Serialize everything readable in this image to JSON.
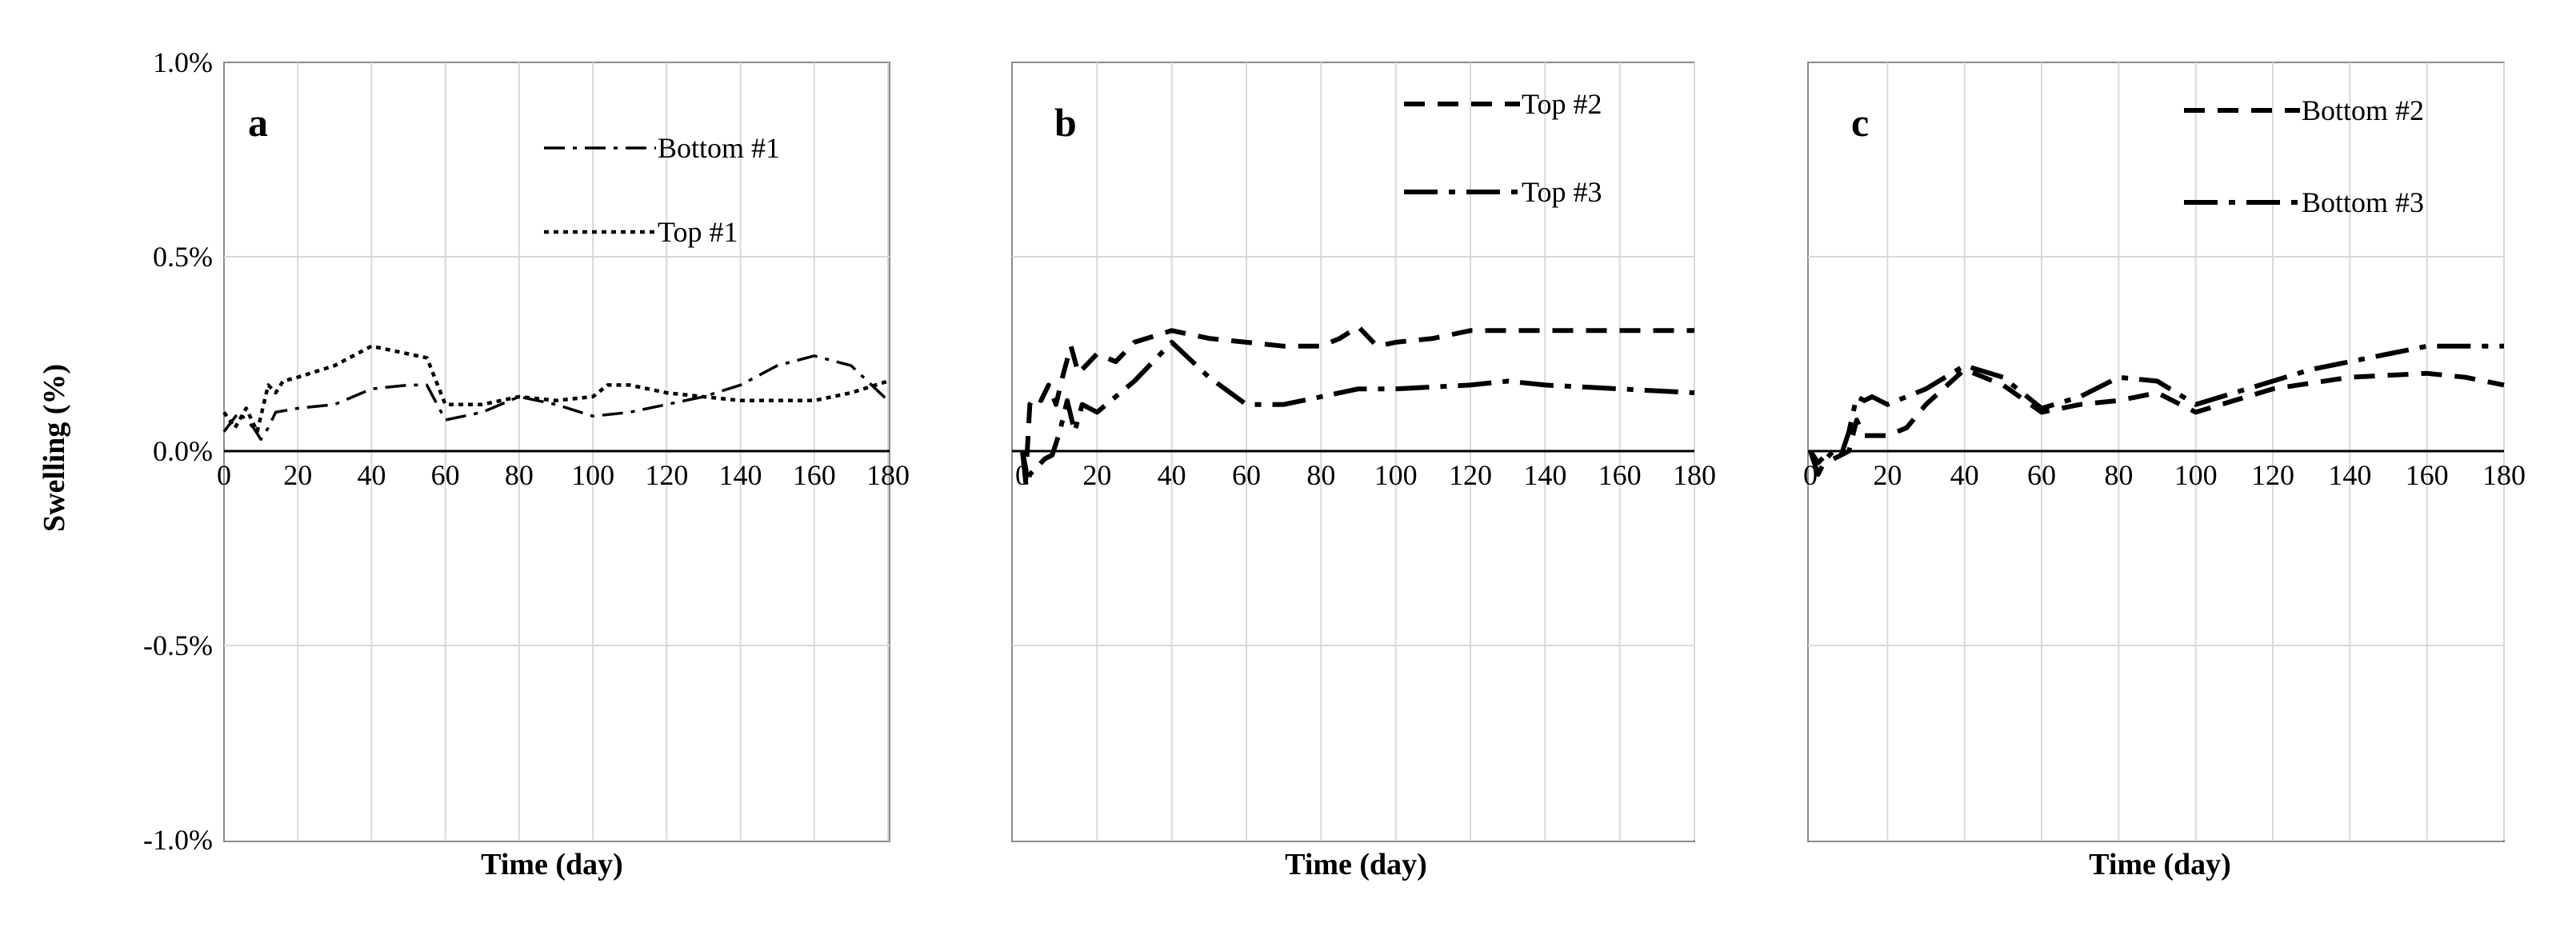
{
  "figure": {
    "shared_ylabel": "Swelling (%)",
    "colors": {
      "line": "#000000",
      "grid": "#d9d9d9",
      "frame": "#8c8c8c"
    }
  },
  "chart_data": [
    {
      "type": "line",
      "panel": "a",
      "xlabel": "Time (day)",
      "ylabel": "Swelling (%)",
      "xlim": [
        0,
        180
      ],
      "ylim": [
        -1.0,
        1.0
      ],
      "xticks": [
        0,
        20,
        40,
        60,
        80,
        100,
        120,
        140,
        160,
        180
      ],
      "yticks": [
        1.0,
        0.5,
        0.0,
        -0.5,
        -1.0
      ],
      "ytick_labels": [
        "1.0%",
        "0.5%",
        "0.0%",
        "-0.5%",
        "-1.0%"
      ],
      "series": [
        {
          "name": "Bottom #1",
          "style": "dashdot",
          "x": [
            0,
            4,
            8,
            10,
            12,
            14,
            20,
            30,
            40,
            50,
            55,
            60,
            70,
            80,
            90,
            100,
            110,
            120,
            130,
            140,
            150,
            160,
            170,
            180
          ],
          "y": [
            0.05,
            0.1,
            0.06,
            0.03,
            0.06,
            0.1,
            0.11,
            0.12,
            0.16,
            0.17,
            0.17,
            0.08,
            0.1,
            0.14,
            0.12,
            0.09,
            0.1,
            0.12,
            0.14,
            0.17,
            0.22,
            0.245,
            0.22,
            0.13
          ]
        },
        {
          "name": "Top #1",
          "style": "dotted",
          "x": [
            0,
            3,
            6,
            9,
            12,
            14,
            16,
            20,
            30,
            40,
            50,
            55,
            60,
            70,
            80,
            90,
            100,
            104,
            110,
            120,
            130,
            140,
            160,
            170,
            180
          ],
          "y": [
            0.1,
            0.06,
            0.11,
            0.05,
            0.17,
            0.15,
            0.18,
            0.19,
            0.22,
            0.27,
            0.25,
            0.24,
            0.12,
            0.12,
            0.14,
            0.13,
            0.14,
            0.17,
            0.17,
            0.15,
            0.14,
            0.13,
            0.13,
            0.15,
            0.18
          ]
        }
      ]
    },
    {
      "type": "line",
      "panel": "b",
      "xlabel": "Time (day)",
      "xlim": [
        0,
        180
      ],
      "ylim": [
        -1.0,
        1.0
      ],
      "xticks": [
        0,
        20,
        40,
        60,
        80,
        100,
        120,
        140,
        160,
        180
      ],
      "series": [
        {
          "name": "Top #2",
          "style": "dashed",
          "x": [
            0,
            1,
            2,
            3,
            5,
            7,
            9,
            11,
            13,
            15,
            20,
            25,
            30,
            40,
            45,
            50,
            60,
            70,
            80,
            85,
            90,
            95,
            100,
            110,
            120,
            130,
            140,
            160,
            180
          ],
          "y": [
            0.0,
            -0.05,
            0.12,
            0.14,
            0.13,
            0.17,
            0.12,
            0.2,
            0.27,
            0.2,
            0.25,
            0.23,
            0.28,
            0.31,
            0.3,
            0.29,
            0.28,
            0.27,
            0.27,
            0.29,
            0.32,
            0.27,
            0.28,
            0.29,
            0.31,
            0.31,
            0.31,
            0.31,
            0.31
          ]
        },
        {
          "name": "Top #3",
          "style": "longdashdot",
          "x": [
            0,
            1,
            2,
            4,
            6,
            8,
            10,
            12,
            14,
            16,
            20,
            30,
            40,
            50,
            60,
            70,
            80,
            90,
            100,
            120,
            130,
            140,
            160,
            180
          ],
          "y": [
            0.0,
            -0.09,
            -0.06,
            -0.04,
            -0.02,
            -0.01,
            0.05,
            0.13,
            0.05,
            0.12,
            0.1,
            0.18,
            0.28,
            0.19,
            0.12,
            0.12,
            0.14,
            0.16,
            0.16,
            0.17,
            0.18,
            0.17,
            0.16,
            0.15
          ]
        }
      ]
    },
    {
      "type": "line",
      "panel": "c",
      "xlabel": "Time (day)",
      "xlim": [
        0,
        180
      ],
      "ylim": [
        -1.0,
        1.0
      ],
      "xticks": [
        0,
        20,
        40,
        60,
        80,
        100,
        120,
        140,
        160,
        180
      ],
      "series": [
        {
          "name": "Bottom #2",
          "style": "dashed",
          "x": [
            0,
            2,
            4,
            6,
            8,
            10,
            12,
            14,
            20,
            25,
            30,
            40,
            50,
            60,
            70,
            80,
            90,
            100,
            110,
            120,
            140,
            160,
            170,
            180
          ],
          "y": [
            0.0,
            -0.03,
            -0.01,
            -0.02,
            -0.01,
            0.0,
            0.08,
            0.04,
            0.04,
            0.06,
            0.12,
            0.21,
            0.17,
            0.1,
            0.12,
            0.13,
            0.15,
            0.1,
            0.13,
            0.16,
            0.19,
            0.2,
            0.19,
            0.17
          ]
        },
        {
          "name": "Bottom #3",
          "style": "longdashdot",
          "x": [
            0,
            2,
            4,
            6,
            8,
            10,
            12,
            14,
            16,
            20,
            30,
            40,
            50,
            60,
            70,
            80,
            90,
            100,
            110,
            120,
            130,
            140,
            150,
            160,
            170,
            180
          ],
          "y": [
            0.0,
            -0.06,
            -0.02,
            0.0,
            -0.01,
            0.05,
            0.14,
            0.13,
            0.14,
            0.12,
            0.16,
            0.22,
            0.19,
            0.11,
            0.14,
            0.19,
            0.18,
            0.12,
            0.15,
            0.18,
            0.21,
            0.23,
            0.25,
            0.27,
            0.27,
            0.27
          ]
        }
      ]
    }
  ]
}
